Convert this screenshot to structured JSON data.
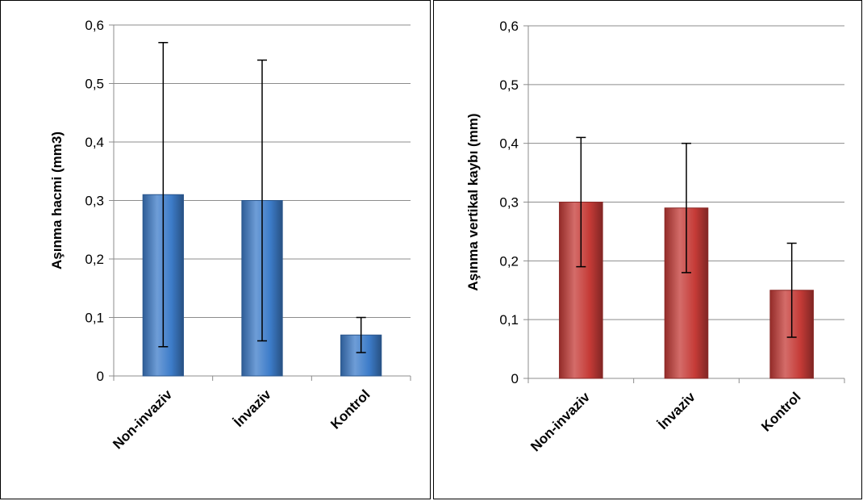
{
  "chart_data": [
    {
      "type": "bar",
      "categories": [
        "Non-invaziv",
        "İnvaziv",
        "Kontrol"
      ],
      "values": [
        0.31,
        0.3,
        0.07
      ],
      "error_low": [
        0.05,
        0.06,
        0.04
      ],
      "error_high": [
        0.57,
        0.54,
        0.1
      ],
      "ylabel": "Aşınma hacmi (mm3)",
      "ylim": [
        0,
        0.6
      ],
      "yticks": [
        "0",
        "0,1",
        "0,2",
        "0,3",
        "0,4",
        "0,5",
        "0,6"
      ],
      "grid": true,
      "bar_color": "#3d7cc9"
    },
    {
      "type": "bar",
      "categories": [
        "Non-invaziv",
        "İnvaziv",
        "Kontrol"
      ],
      "values": [
        0.3,
        0.29,
        0.15
      ],
      "error_low": [
        0.19,
        0.18,
        0.07
      ],
      "error_high": [
        0.41,
        0.4,
        0.23
      ],
      "ylabel": "Aşınma vertikal kaybı (mm)",
      "ylim": [
        0,
        0.6
      ],
      "yticks": [
        "0",
        "0,1",
        "0,2",
        "0,3",
        "0,4",
        "0,5",
        "0,6"
      ],
      "grid": true,
      "bar_color": "#c53b37"
    }
  ]
}
